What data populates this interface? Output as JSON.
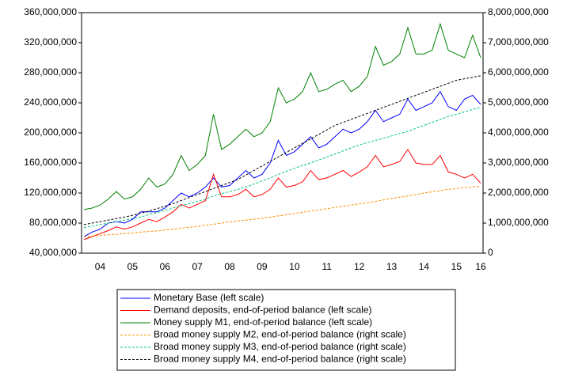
{
  "chart_data": {
    "type": "line",
    "categories": [
      null,
      null,
      "04",
      null,
      null,
      null,
      "05",
      null,
      null,
      null,
      "06",
      null,
      null,
      null,
      "07",
      null,
      null,
      null,
      "08",
      null,
      null,
      null,
      "09",
      null,
      null,
      null,
      "10",
      null,
      null,
      null,
      "11",
      null,
      null,
      null,
      "12",
      null,
      null,
      null,
      "13",
      null,
      null,
      null,
      "14",
      null,
      null,
      null,
      "15",
      null,
      null,
      "16"
    ],
    "ylim": [
      40000000,
      360000000
    ],
    "yticks": [
      {
        "value": 40000000,
        "label": "40,000,000"
      },
      {
        "value": 80000000,
        "label": "80,000,000"
      },
      {
        "value": 120000000,
        "label": "120,000,000"
      },
      {
        "value": 160000000,
        "label": "160,000,000"
      },
      {
        "value": 200000000,
        "label": "200,000,000"
      },
      {
        "value": 240000000,
        "label": "240,000,000"
      },
      {
        "value": 280000000,
        "label": "280,000,000"
      },
      {
        "value": 320000000,
        "label": "320,000,000"
      },
      {
        "value": 360000000,
        "label": "360,000,000"
      }
    ],
    "y2lim": [
      0,
      8000000000
    ],
    "y2ticks": [
      0,
      {
        "value": 1000000000,
        "label": "1,000,000,000"
      },
      {
        "value": 2000000000,
        "label": "2,000,000,000"
      },
      {
        "value": 3000000000,
        "label": "3,000,000,000"
      },
      {
        "value": 4000000000,
        "label": "4,000,000,000"
      },
      {
        "value": 5000000000,
        "label": "5,000,000,000"
      },
      {
        "value": 6000000000,
        "label": "6,000,000,000"
      },
      {
        "value": 7000000000,
        "label": "7,000,000,000"
      },
      {
        "value": 8000000000,
        "label": "8,000,000,000"
      }
    ],
    "series": [
      {
        "name": "Monetary Base (left scale)",
        "color": "#0000ff",
        "dashed": false,
        "values": [
          62000000.0,
          68000000.0,
          72000000.0,
          80000000.0,
          82000000.0,
          80000000.0,
          85000000.0,
          95000000.0,
          95000000.0,
          95000000.0,
          100000000.0,
          110000000.0,
          120000000.0,
          115000000.0,
          120000000.0,
          128000000.0,
          140000000.0,
          128000000.0,
          130000000.0,
          140000000.0,
          150000000.0,
          140000000.0,
          145000000.0,
          160000000.0,
          190000000.0,
          170000000.0,
          175000000.0,
          185000000.0,
          195000000.0,
          180000000.0,
          185000000.0,
          195000000.0,
          205000000.0,
          200000000.0,
          205000000.0,
          215000000.0,
          230000000.0,
          215000000.0,
          220000000.0,
          225000000.0,
          245000000.0,
          230000000.0,
          235000000.0,
          240000000.0,
          255000000.0,
          235000000.0,
          230000000.0,
          245000000.0,
          250000000.0,
          238000000.0
        ]
      },
      {
        "name": "Demand deposits, end-of-period balance (left scale)",
        "color": "#ff0000",
        "dashed": false,
        "values": [
          58000000.0,
          62000000.0,
          66000000.0,
          70000000.0,
          75000000.0,
          72000000.0,
          75000000.0,
          80000000.0,
          85000000.0,
          82000000.0,
          88000000.0,
          95000000.0,
          105000000.0,
          100000000.0,
          105000000.0,
          110000000.0,
          145000000.0,
          115000000.0,
          115000000.0,
          118000000.0,
          125000000.0,
          115000000.0,
          118000000.0,
          125000000.0,
          140000000.0,
          128000000.0,
          130000000.0,
          135000000.0,
          150000000.0,
          138000000.0,
          140000000.0,
          145000000.0,
          150000000.0,
          142000000.0,
          148000000.0,
          155000000.0,
          170000000.0,
          155000000.0,
          158000000.0,
          162000000.0,
          178000000.0,
          160000000.0,
          158000000.0,
          158000000.0,
          170000000.0,
          148000000.0,
          145000000.0,
          140000000.0,
          145000000.0,
          133000000.0
        ]
      },
      {
        "name": "Money supply M1, end-of-period balance (left scale)",
        "color": "#008000",
        "dashed": false,
        "values": [
          98000000.0,
          100000000.0,
          104000000.0,
          112000000.0,
          122000000.0,
          112000000.0,
          115000000.0,
          125000000.0,
          140000000.0,
          128000000.0,
          132000000.0,
          145000000.0,
          170000000.0,
          150000000.0,
          158000000.0,
          170000000.0,
          225000000.0,
          178000000.0,
          185000000.0,
          195000000.0,
          205000000.0,
          195000000.0,
          200000000.0,
          215000000.0,
          260000000.0,
          240000000.0,
          245000000.0,
          255000000.0,
          280000000.0,
          255000000.0,
          258000000.0,
          265000000.0,
          270000000.0,
          255000000.0,
          262000000.0,
          275000000.0,
          315000000.0,
          290000000.0,
          295000000.0,
          305000000.0,
          340000000.0,
          305000000.0,
          305000000.0,
          310000000.0,
          345000000.0,
          310000000.0,
          305000000.0,
          300000000.0,
          330000000.0,
          300000000.0
        ]
      },
      {
        "name": "Broad money supply M2, end-of-period balance (right scale)",
        "color": "#ff8c00",
        "dashed": true,
        "axis": "y2",
        "values": [
          550000000.0,
          570000000.0,
          590000000.0,
          610000000.0,
          630000000.0,
          650000000.0,
          670000000.0,
          700000000.0,
          720000000.0,
          740000000.0,
          770000000.0,
          800000000.0,
          830000000.0,
          860000000.0,
          890000000.0,
          930000000.0,
          960000000.0,
          1000000000.0,
          1040000000.0,
          1070000000.0,
          1100000000.0,
          1130000000.0,
          1160000000.0,
          1200000000.0,
          1240000000.0,
          1280000000.0,
          1320000000.0,
          1360000000.0,
          1400000000.0,
          1440000000.0,
          1480000000.0,
          1520000000.0,
          1560000000.0,
          1600000000.0,
          1640000000.0,
          1680000000.0,
          1720000000.0,
          1770000000.0,
          1820000000.0,
          1860000000.0,
          1900000000.0,
          1950000000.0,
          2000000000.0,
          2040000000.0,
          2080000000.0,
          2120000000.0,
          2150000000.0,
          2180000000.0,
          2200000000.0,
          2220000000.0
        ]
      },
      {
        "name": "Broad money supply M3, end-of-period balance (right scale)",
        "color": "#00c77a",
        "dashed": true,
        "axis": "y2",
        "values": [
          850000000.0,
          900000000.0,
          950000000.0,
          1000000000.0,
          1050000000.0,
          1100000000.0,
          1150000000.0,
          1200000000.0,
          1280000000.0,
          1350000000.0,
          1420000000.0,
          1500000000.0,
          1580000000.0,
          1650000000.0,
          1720000000.0,
          1800000000.0,
          1900000000.0,
          1980000000.0,
          2050000000.0,
          2120000000.0,
          2200000000.0,
          2300000000.0,
          2400000000.0,
          2500000000.0,
          2620000000.0,
          2720000000.0,
          2820000000.0,
          2920000000.0,
          3000000000.0,
          3100000000.0,
          3200000000.0,
          3300000000.0,
          3400000000.0,
          3500000000.0,
          3600000000.0,
          3680000000.0,
          3750000000.0,
          3820000000.0,
          3900000000.0,
          3980000000.0,
          4050000000.0,
          4150000000.0,
          4250000000.0,
          4350000000.0,
          4450000000.0,
          4550000000.0,
          4620000000.0,
          4700000000.0,
          4780000000.0,
          4850000000.0
        ]
      },
      {
        "name": "Broad money supply M4, end-of-period balance (right scale)",
        "color": "#000000",
        "dashed": true,
        "axis": "y2",
        "values": [
          950000000.0,
          1000000000.0,
          1050000000.0,
          1100000000.0,
          1150000000.0,
          1200000000.0,
          1260000000.0,
          1330000000.0,
          1400000000.0,
          1480000000.0,
          1560000000.0,
          1650000000.0,
          1750000000.0,
          1850000000.0,
          1950000000.0,
          2050000000.0,
          2150000000.0,
          2250000000.0,
          2350000000.0,
          2450000000.0,
          2600000000.0,
          2750000000.0,
          2900000000.0,
          3050000000.0,
          3200000000.0,
          3350000000.0,
          3500000000.0,
          3650000000.0,
          3800000000.0,
          3950000000.0,
          4100000000.0,
          4250000000.0,
          4350000000.0,
          4450000000.0,
          4550000000.0,
          4650000000.0,
          4750000000.0,
          4850000000.0,
          4950000000.0,
          5050000000.0,
          5150000000.0,
          5250000000.0,
          5350000000.0,
          5450000000.0,
          5550000000.0,
          5650000000.0,
          5750000000.0,
          5800000000.0,
          5850000000.0,
          5900000000.0
        ]
      }
    ]
  }
}
